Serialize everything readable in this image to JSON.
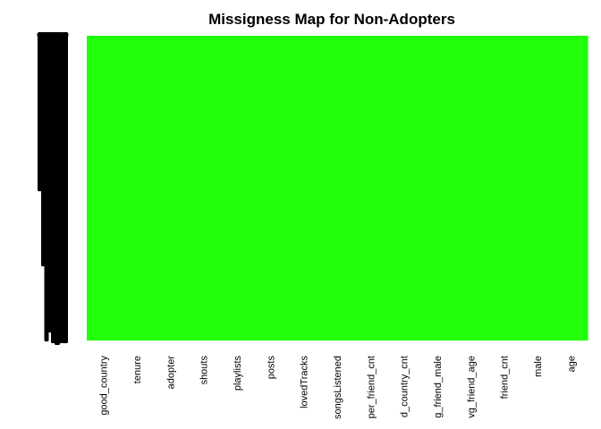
{
  "chart_data": {
    "type": "heatmap",
    "title": "Missigness Map for Non-Adopters",
    "columns": [
      "good_country",
      "tenure",
      "adopter",
      "shouts",
      "playlists",
      "posts",
      "lovedTracks",
      "songsListened",
      "subscriber_friend_cnt",
      "friend_country_cnt",
      "avg_friend_male",
      "avg_friend_age",
      "friend_cnt",
      "male",
      "age"
    ],
    "x_tick_labels": [
      "good_country",
      "tenure",
      "adopter",
      "shouts",
      "playlists",
      "posts",
      "lovedTracks",
      "songsListened",
      "per_friend_cnt",
      "d_country_cnt",
      "g_friend_male",
      "vg_friend_age",
      "friend_cnt",
      "male",
      "age"
    ],
    "observed_fraction": [
      1,
      1,
      1,
      1,
      1,
      1,
      1,
      1,
      1,
      1,
      1,
      1,
      1,
      1,
      1
    ],
    "missing_fraction": [
      0,
      0,
      0,
      0,
      0,
      0,
      0,
      0,
      0,
      0,
      0,
      0,
      0,
      0,
      0
    ],
    "row_labels": "illegible (overplotted row names)",
    "colors": {
      "observed": "#22ff0a",
      "missing": "#ffffff",
      "row_label_ink": "#000000"
    },
    "legend": "none",
    "grid": false
  }
}
